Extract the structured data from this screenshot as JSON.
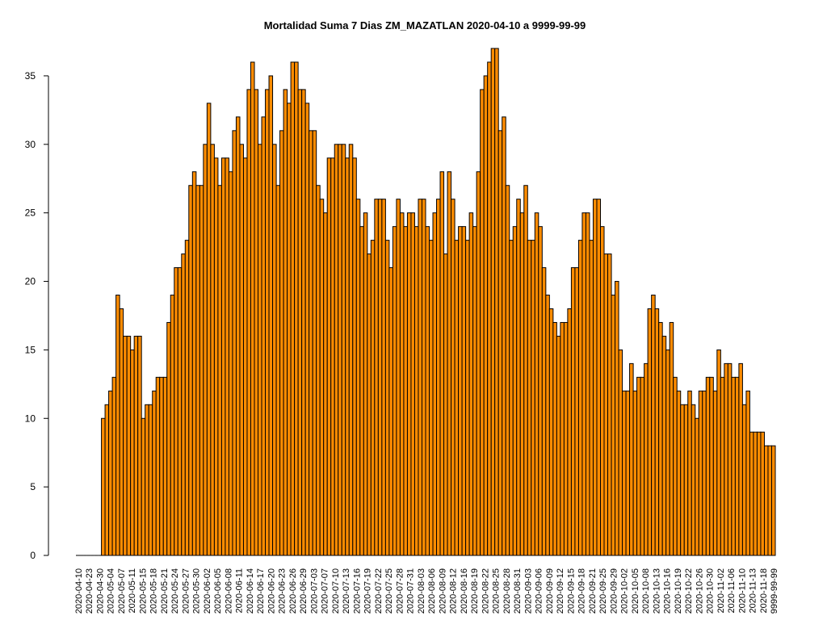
{
  "chart_data": {
    "type": "bar",
    "title": "Mortalidad Suma 7 Dias ZM_MAZATLAN 2020-04-10 a 9999-99-99",
    "xlabel": "",
    "ylabel": "",
    "ylim": [
      0,
      37
    ],
    "yticks": [
      0,
      5,
      10,
      15,
      20,
      25,
      30,
      35
    ],
    "bar_color": "#FF8C00",
    "bar_border": "#000000",
    "tick_labels": [
      "2020-04-10",
      "2020-04-23",
      "2020-04-30",
      "2020-05-04",
      "2020-05-07",
      "2020-05-11",
      "2020-05-15",
      "2020-05-18",
      "2020-05-21",
      "2020-05-24",
      "2020-05-27",
      "2020-05-30",
      "2020-06-02",
      "2020-06-05",
      "2020-06-08",
      "2020-06-11",
      "2020-06-14",
      "2020-06-17",
      "2020-06-20",
      "2020-06-23",
      "2020-06-26",
      "2020-06-29",
      "2020-07-03",
      "2020-07-07",
      "2020-07-10",
      "2020-07-13",
      "2020-07-16",
      "2020-07-19",
      "2020-07-22",
      "2020-07-25",
      "2020-07-28",
      "2020-07-31",
      "2020-08-03",
      "2020-08-06",
      "2020-08-09",
      "2020-08-12",
      "2020-08-16",
      "2020-08-19",
      "2020-08-22",
      "2020-08-25",
      "2020-08-28",
      "2020-08-31",
      "2020-09-03",
      "2020-09-06",
      "2020-09-09",
      "2020-09-12",
      "2020-09-15",
      "2020-09-18",
      "2020-09-21",
      "2020-09-25",
      "2020-09-29",
      "2020-10-02",
      "2020-10-05",
      "2020-10-08",
      "2020-10-13",
      "2020-10-16",
      "2020-10-19",
      "2020-10-22",
      "2020-10-26",
      "2020-10-30",
      "2020-11-02",
      "2020-11-06",
      "2020-11-10",
      "2020-11-13",
      "2020-11-18",
      "9999-99-99"
    ],
    "values": [
      0,
      0,
      0,
      0,
      0,
      0,
      0,
      10,
      11,
      12,
      13,
      19,
      18,
      16,
      16,
      15,
      16,
      16,
      10,
      11,
      11,
      12,
      13,
      13,
      13,
      17,
      19,
      21,
      21,
      22,
      23,
      27,
      28,
      27,
      27,
      30,
      33,
      30,
      29,
      27,
      29,
      29,
      28,
      31,
      32,
      30,
      29,
      34,
      36,
      34,
      30,
      32,
      34,
      35,
      30,
      27,
      31,
      34,
      33,
      36,
      36,
      34,
      34,
      33,
      31,
      31,
      27,
      26,
      25,
      29,
      29,
      30,
      30,
      30,
      29,
      30,
      29,
      26,
      24,
      25,
      22,
      23,
      26,
      26,
      26,
      23,
      21,
      24,
      26,
      25,
      24,
      25,
      25,
      24,
      26,
      26,
      24,
      23,
      25,
      26,
      28,
      22,
      28,
      26,
      23,
      24,
      24,
      23,
      25,
      24,
      28,
      34,
      35,
      36,
      37,
      37,
      31,
      32,
      27,
      23,
      24,
      26,
      25,
      27,
      23,
      23,
      25,
      24,
      21,
      19,
      18,
      17,
      16,
      17,
      17,
      18,
      21,
      21,
      23,
      25,
      25,
      23,
      26,
      26,
      24,
      22,
      22,
      19,
      20,
      15,
      12,
      12,
      14,
      12,
      13,
      13,
      14,
      18,
      19,
      18,
      17,
      16,
      15,
      17,
      13,
      12,
      11,
      11,
      12,
      11,
      10,
      12,
      12,
      13,
      13,
      12,
      15,
      13,
      14,
      14,
      13,
      13,
      14,
      11,
      12,
      9,
      9,
      9,
      9,
      8,
      8,
      8
    ]
  }
}
